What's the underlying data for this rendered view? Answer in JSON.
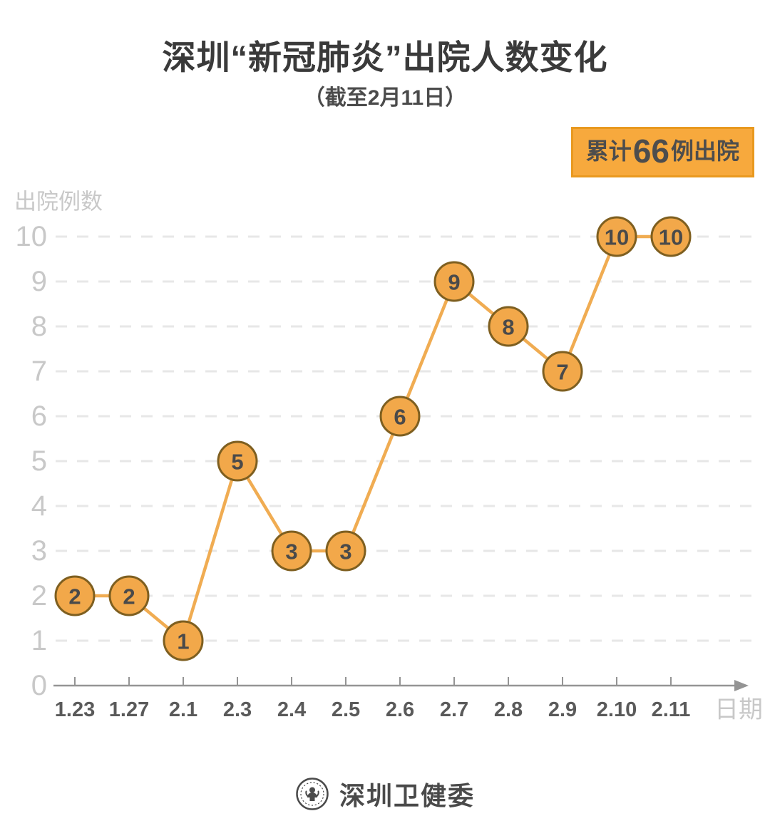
{
  "header": {
    "title": "深圳“新冠肺炎”出院人数变化",
    "subtitle": "（截至2月11日）",
    "badge": {
      "prefix": "累计",
      "number": "66",
      "suffix": "例出院"
    }
  },
  "chart_data": {
    "type": "line",
    "title": "深圳“新冠肺炎”出院人数变化",
    "subtitle": "（截至2月11日）",
    "categories": [
      "1.23",
      "1.27",
      "2.1",
      "2.3",
      "2.4",
      "2.5",
      "2.6",
      "2.7",
      "2.8",
      "2.9",
      "2.10",
      "2.11"
    ],
    "values": [
      2,
      2,
      1,
      5,
      3,
      3,
      6,
      9,
      8,
      7,
      10,
      10
    ],
    "xlabel": "日期",
    "ylabel": "出院例数",
    "ylim": [
      0,
      10
    ],
    "y_ticks": [
      0,
      1,
      2,
      3,
      4,
      5,
      6,
      7,
      8,
      9,
      10
    ],
    "grid": "dashed-horizontal",
    "legend": "none",
    "annotation_total": "累计66例出院",
    "markers": "circled-value-labels",
    "colors": {
      "line": "#F0AC52",
      "marker_fill": "#F2A84A",
      "marker_stroke": "#7E5F20",
      "value_text": "#4a4a4a",
      "grid": "#E7E7E7",
      "axis": "#949494",
      "y_tick_text": "#C8C8C8",
      "x_tick_text": "#5a5a5a",
      "axis_title_text": "#C8C8C8",
      "badge_bg": "#F7A93D",
      "badge_border": "#E9991F"
    }
  },
  "footer": {
    "source": "深圳卫健委"
  }
}
